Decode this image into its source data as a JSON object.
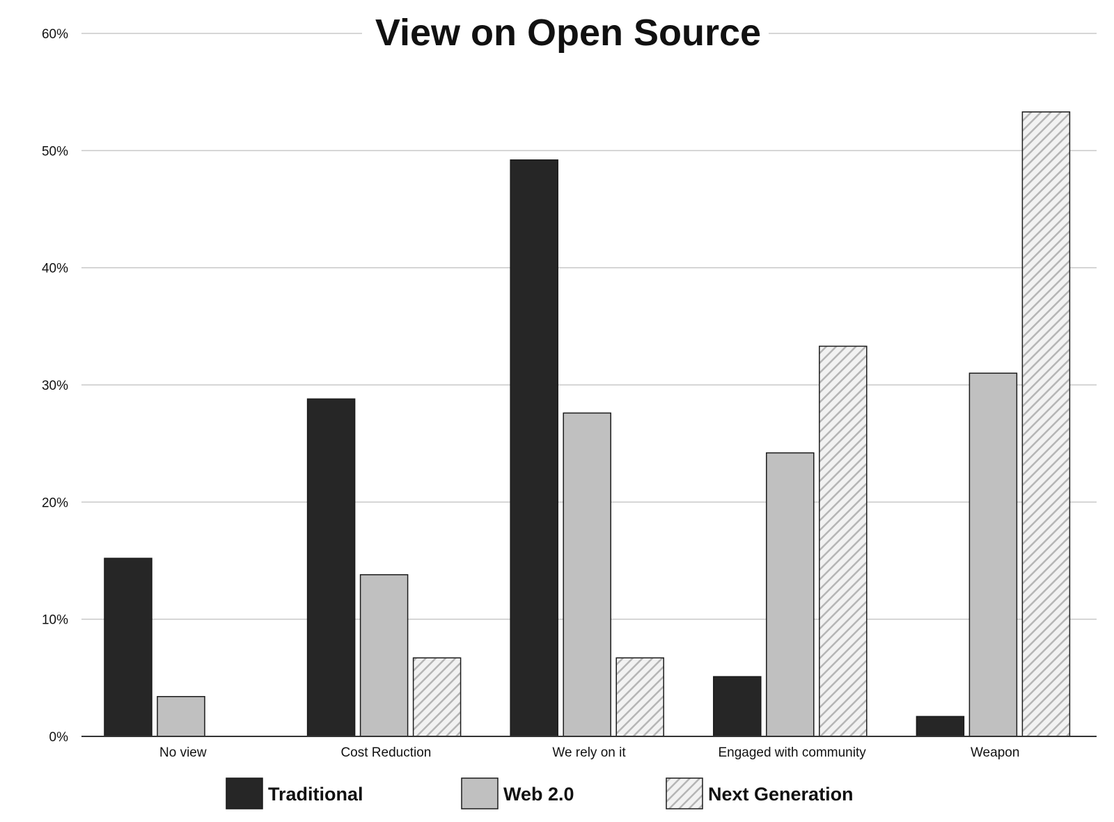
{
  "chart_data": {
    "type": "bar",
    "title": "View on Open Source",
    "xlabel": "",
    "ylabel": "",
    "categories": [
      "No view",
      "Cost Reduction",
      "We rely on it",
      "Engaged with community",
      "Weapon"
    ],
    "series": [
      {
        "name": "Traditional",
        "values": [
          15.2,
          28.8,
          49.2,
          5.1,
          1.7
        ],
        "color": "#262626",
        "pattern": "solid"
      },
      {
        "name": "Web 2.0",
        "values": [
          3.4,
          13.8,
          27.6,
          24.2,
          31.0
        ],
        "color": "#c0c0c0",
        "pattern": "solid"
      },
      {
        "name": "Next Generation",
        "values": [
          0,
          6.7,
          6.7,
          33.3,
          53.3
        ],
        "color": "#f2f2f2",
        "pattern": "diagonal-hatch"
      }
    ],
    "ylim": [
      0,
      60
    ],
    "yticks": [
      0,
      10,
      20,
      30,
      40,
      50,
      60
    ],
    "ytick_labels": [
      "0%",
      "10%",
      "20%",
      "30%",
      "40%",
      "50%",
      "60%"
    ],
    "grid": true,
    "legend_position": "bottom-center"
  },
  "colors": {
    "gridline": "#c8c8c8",
    "axis": "#333333",
    "bar_outline": "#1a1a1a",
    "hatch_line": "#b5b5b5"
  }
}
